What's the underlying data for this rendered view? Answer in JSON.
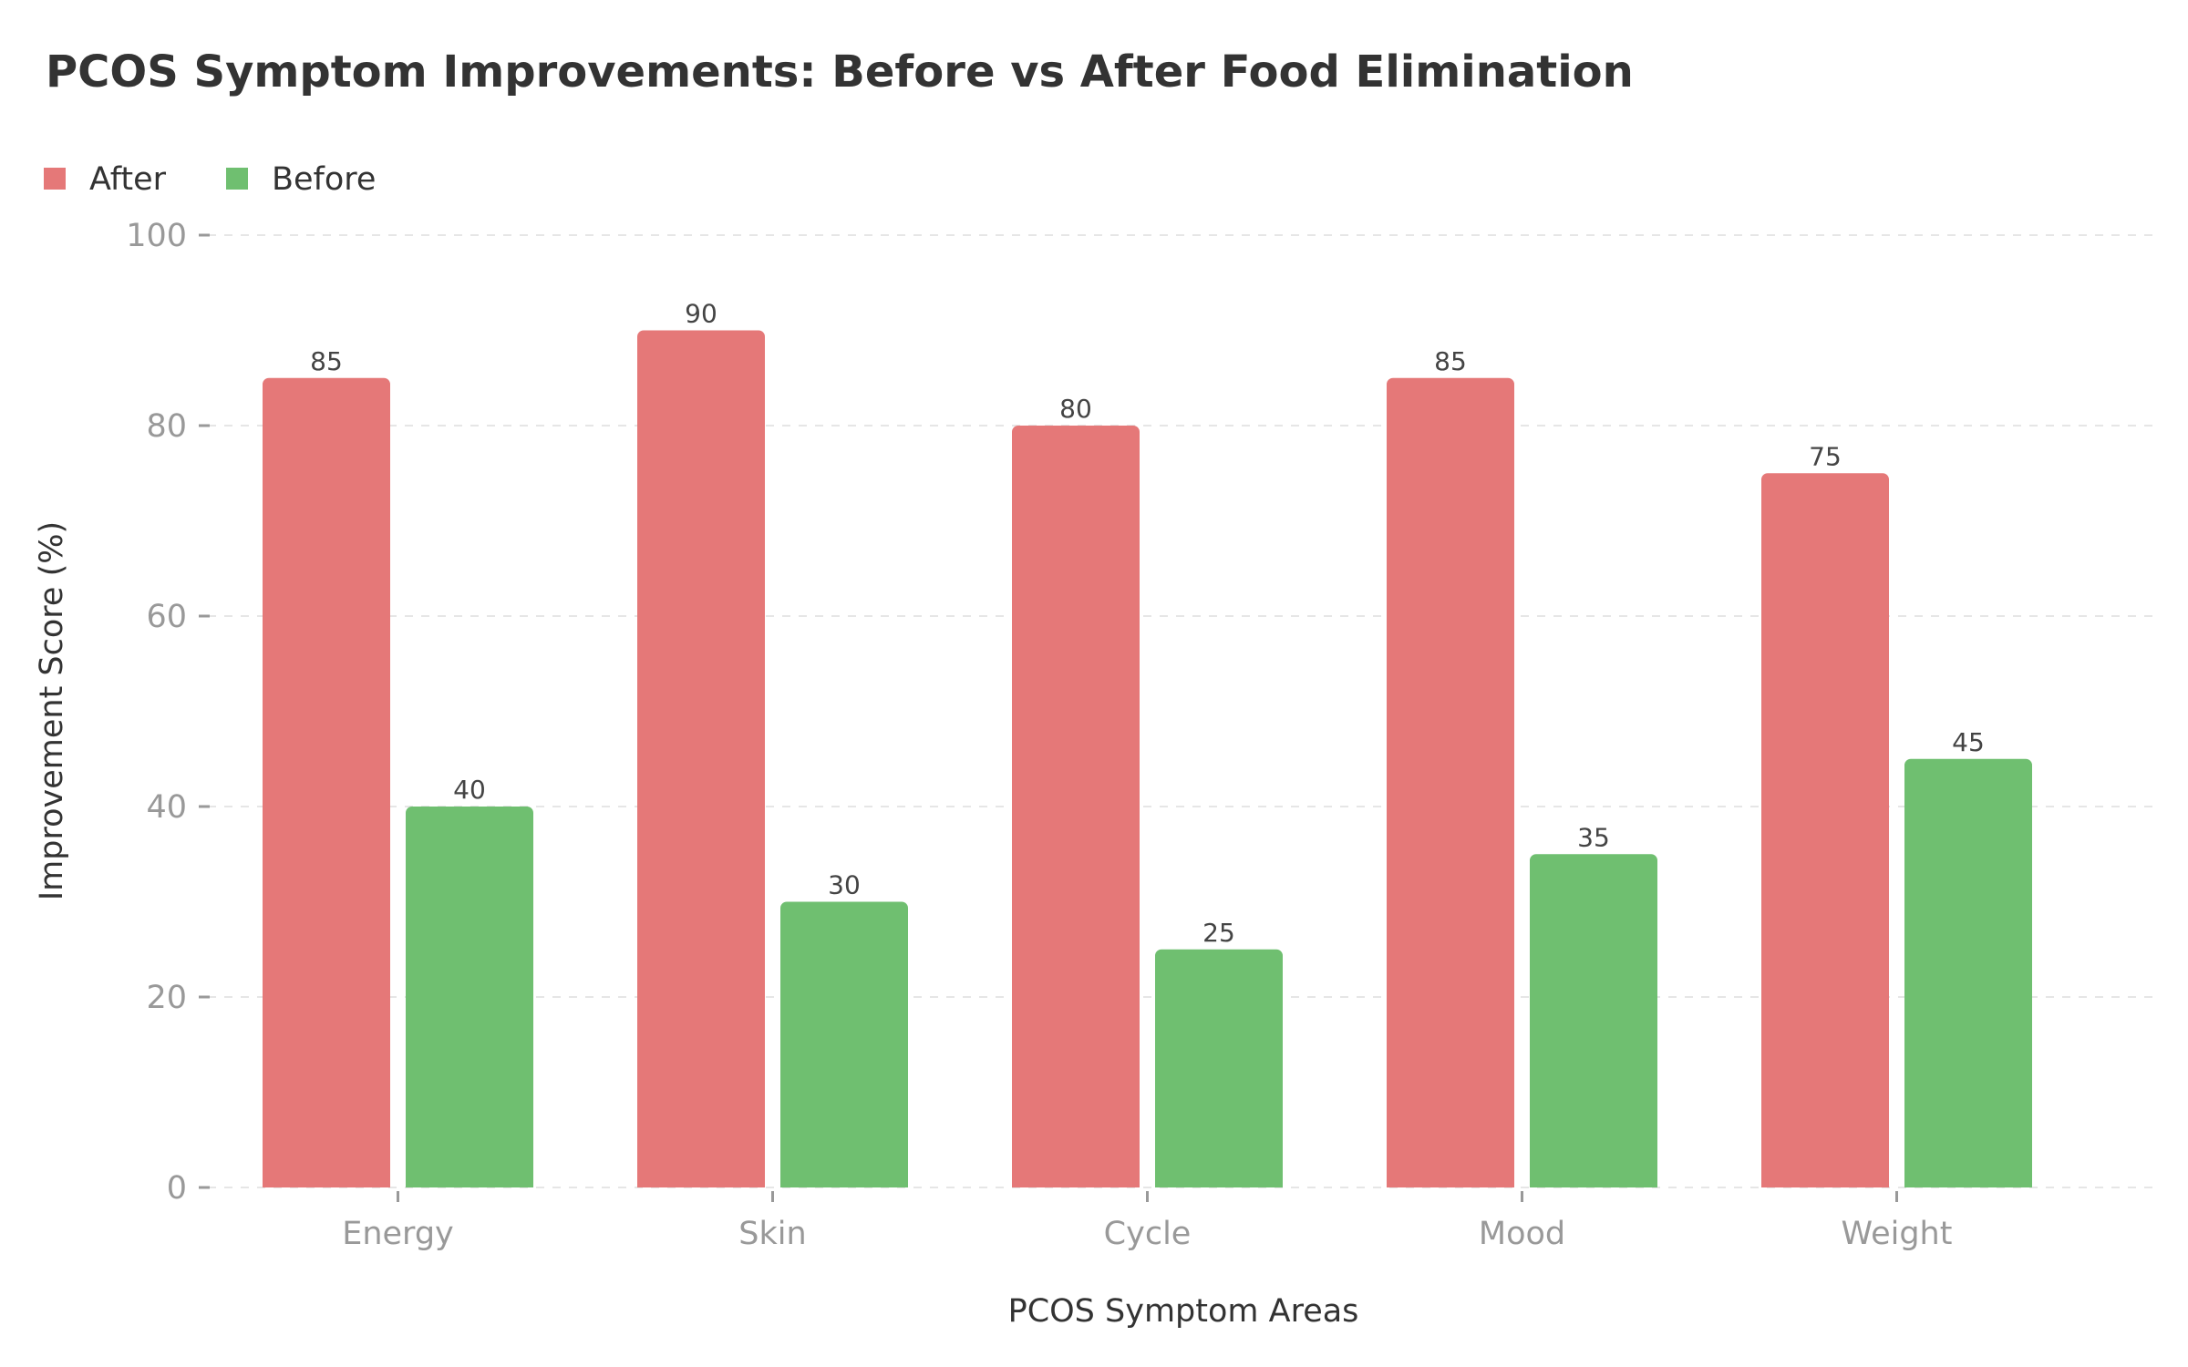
{
  "chart_data": {
    "type": "bar",
    "title": "PCOS Symptom Improvements: Before vs After Food Elimination",
    "xlabel": "PCOS Symptom Areas",
    "ylabel": "Improvement Score (%)",
    "ylim": [
      0,
      100
    ],
    "yticks": [
      0,
      20,
      40,
      60,
      80,
      100
    ],
    "categories": [
      "Energy",
      "Skin",
      "Cycle",
      "Mood",
      "Weight"
    ],
    "series": [
      {
        "name": "After",
        "color": "#e57878",
        "values": [
          85,
          90,
          80,
          85,
          75
        ]
      },
      {
        "name": "Before",
        "color": "#6fbf70",
        "values": [
          40,
          30,
          25,
          35,
          45
        ]
      }
    ],
    "legend_position": "top-left",
    "grid": true
  }
}
